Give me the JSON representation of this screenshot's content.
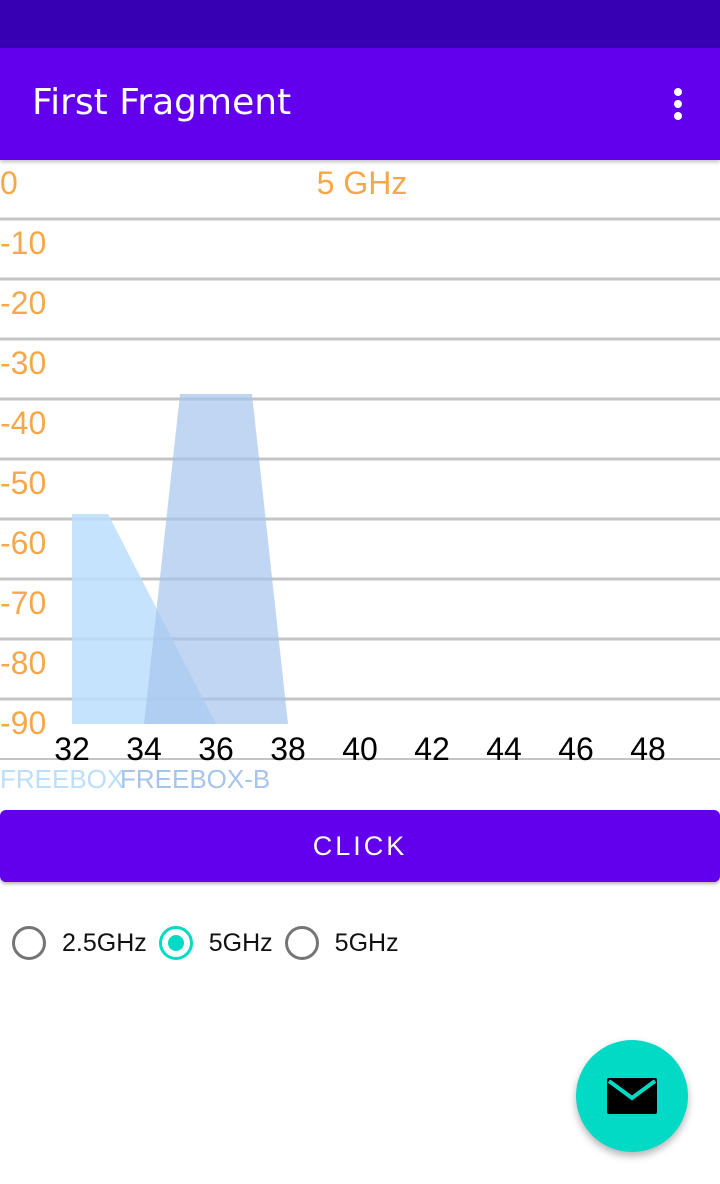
{
  "app_bar": {
    "title": "First Fragment",
    "menu_icon": "more-vert-icon"
  },
  "chart_data": {
    "type": "area",
    "title": "5 GHz",
    "xlabel": "",
    "ylabel": "",
    "x_ticks": [
      "32",
      "34",
      "36",
      "38",
      "40",
      "42",
      "44",
      "46",
      "48"
    ],
    "y_ticks": [
      "0",
      "-10",
      "-20",
      "-30",
      "-40",
      "-50",
      "-60",
      "-70",
      "-80",
      "-90"
    ],
    "xlim": [
      32,
      48
    ],
    "ylim": [
      -90,
      0
    ],
    "grid": true,
    "series": [
      {
        "name": "FREEBOX",
        "color": "#BBDEFB",
        "points": [
          [
            32,
            -90
          ],
          [
            32,
            -55
          ],
          [
            33,
            -55
          ],
          [
            36,
            -90
          ]
        ]
      },
      {
        "name": "FREEBOX-B",
        "color": "#A7C4EC",
        "points": [
          [
            34,
            -90
          ],
          [
            35,
            -35
          ],
          [
            37,
            -35
          ],
          [
            38,
            -90
          ]
        ]
      }
    ],
    "legend": "below"
  },
  "colors": {
    "accent": "#6200EE",
    "secondary": "#03DAC5",
    "axis_label": "#F5A84A"
  },
  "button": {
    "label": "CLICK"
  },
  "radio_group": {
    "options": [
      {
        "label": "2.5GHz",
        "checked": false
      },
      {
        "label": "5GHz",
        "checked": true
      },
      {
        "label": "5GHz",
        "checked": false
      }
    ]
  },
  "fab": {
    "icon": "email-icon"
  }
}
